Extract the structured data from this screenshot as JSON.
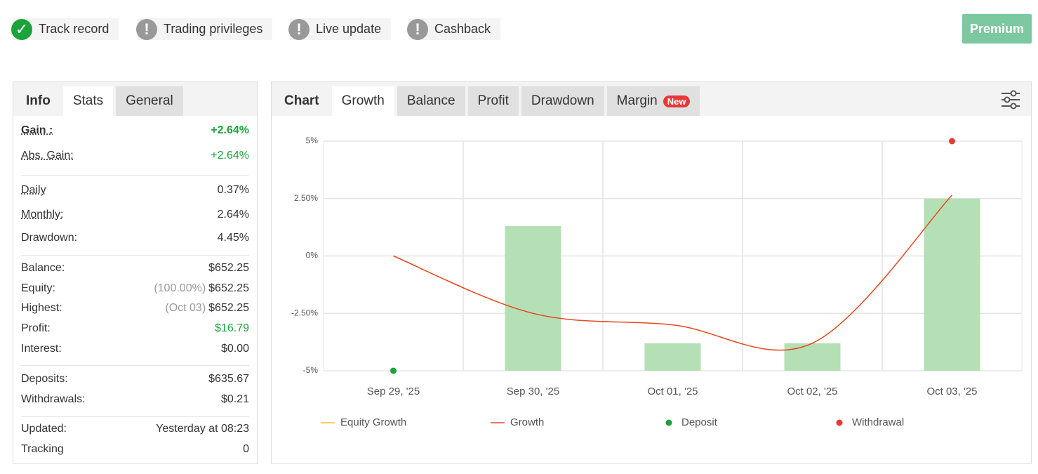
{
  "badges": [
    {
      "label": "Track record",
      "status": "ok"
    },
    {
      "label": "Trading privileges",
      "status": "warn"
    },
    {
      "label": "Live update",
      "status": "warn"
    },
    {
      "label": "Cashback",
      "status": "warn"
    }
  ],
  "premium_button": "Premium",
  "stats_panel": {
    "tabs": [
      "Info",
      "Stats",
      "General"
    ],
    "groups": [
      [
        {
          "label": "Gain :",
          "value": "+2.64%"
        },
        {
          "label": "Abs. Gain:",
          "value": "+2.64%"
        }
      ],
      [
        {
          "label": "Daily",
          "value": "0.37%"
        },
        {
          "label": "Monthly:",
          "value": "2.64%"
        },
        {
          "label": "Drawdown:",
          "value": "4.45%"
        }
      ],
      [
        {
          "label": "Balance:",
          "value": "$652.25"
        },
        {
          "label": "Equity:",
          "note": "(100.00%)",
          "value": "$652.25"
        },
        {
          "label": "Highest:",
          "note": "(Oct 03)",
          "value": "$652.25"
        },
        {
          "label": "Profit:",
          "value": "$16.79"
        },
        {
          "label": "Interest:",
          "value": "$0.00"
        }
      ],
      [
        {
          "label": "Deposits:",
          "value": "$635.67"
        },
        {
          "label": "Withdrawals:",
          "value": "$0.21"
        }
      ],
      [
        {
          "label": "Updated:",
          "value": "Yesterday at 08:23"
        },
        {
          "label": "Tracking",
          "value": "0"
        }
      ]
    ]
  },
  "chart_panel": {
    "tabs": [
      "Chart",
      "Growth",
      "Balance",
      "Profit",
      "Drawdown",
      "Margin"
    ],
    "new_badge": "New"
  },
  "chart_data": {
    "type": "combo",
    "categories": [
      "Sep 29, '25",
      "Sep 30, '25",
      "Oct 01, '25",
      "Oct 02, '25",
      "Oct 03, '25"
    ],
    "ylim": [
      -5,
      5
    ],
    "yticks": [
      {
        "value": 5,
        "label": "5%"
      },
      {
        "value": 2.5,
        "label": "2.50%"
      },
      {
        "value": 0,
        "label": "0%"
      },
      {
        "value": -2.5,
        "label": "-2.50%"
      },
      {
        "value": -5,
        "label": "-5%"
      }
    ],
    "grid": true,
    "bars": {
      "color": "#b5e0b5",
      "values": [
        null,
        1.3,
        -3.8,
        -3.8,
        2.5
      ]
    },
    "series": [
      {
        "name": "Equity Growth",
        "style": "line",
        "color": "#f2c21b",
        "values": [
          null,
          null,
          null,
          null,
          null
        ]
      },
      {
        "name": "Growth",
        "style": "line",
        "color": "#e5481e",
        "values": [
          0,
          -2.5,
          -3.0,
          -3.8,
          2.65
        ]
      },
      {
        "name": "Deposit",
        "style": "dot",
        "color": "#1aa33a",
        "values": [
          -5,
          null,
          null,
          null,
          null
        ]
      },
      {
        "name": "Withdrawal",
        "style": "dot",
        "color": "#e53935",
        "values": [
          null,
          null,
          null,
          null,
          5
        ]
      }
    ]
  }
}
